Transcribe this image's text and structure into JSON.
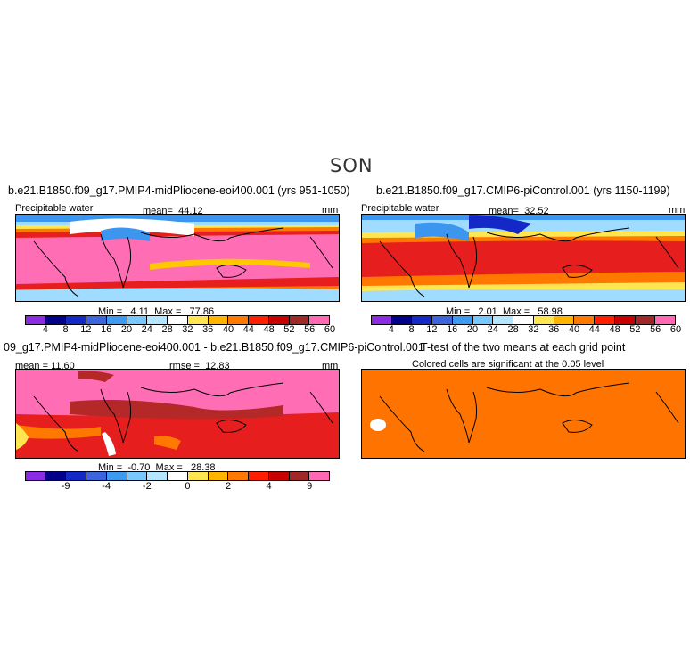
{
  "season": "SON",
  "panels": {
    "pliocene": {
      "run_title": "b.e21.B1850.f09_g17.PMIP4-midPliocene-eoi400.001 (yrs 951-1050)",
      "variable": "Precipitable water",
      "stat_label": "mean=",
      "stat_value": "44.12",
      "units": "mm",
      "min_label": "Min =",
      "min_value": "4.11",
      "max_label": "Max =",
      "max_value": "77.86"
    },
    "picontrol": {
      "run_title": "b.e21.B1850.f09_g17.CMIP6-piControl.001 (yrs 1150-1199)",
      "variable": "Precipitable water",
      "stat_label": "mean=",
      "stat_value": "32.52",
      "units": "mm",
      "min_label": "Min =",
      "min_value": "2.01",
      "max_label": "Max =",
      "max_value": "58.98"
    },
    "difference": {
      "run_title": "09_g17.PMIP4-midPliocene-eoi400.001 - b.e21.B1850.f09_g17.CMIP6-piControl.001",
      "stat_label": "mean =",
      "stat_value": "11.60",
      "rmse_label": "rmse =",
      "rmse_value": "12.83",
      "units": "mm",
      "min_label": "Min =",
      "min_value": "-0.70",
      "max_label": "Max =",
      "max_value": "28.38"
    },
    "ttest": {
      "run_title": "T-test of the two means at each grid point",
      "subtitle": "Colored cells are significant at the 0.05 level"
    }
  },
  "colorbars": {
    "absolute": {
      "colors": [
        "#8b2be2",
        "#00008b",
        "#1428c8",
        "#3c64dc",
        "#3c9bf0",
        "#78c8ff",
        "#b4e6ff",
        "#ffffff",
        "#ffe650",
        "#ffb400",
        "#ff7800",
        "#ff1e00",
        "#c80000",
        "#a02828",
        "#ff69b4"
      ],
      "labels": [
        "4",
        "8",
        "12",
        "16",
        "20",
        "24",
        "28",
        "32",
        "36",
        "40",
        "44",
        "48",
        "52",
        "56",
        "60"
      ]
    },
    "difference": {
      "colors": [
        "#8b2be2",
        "#00008b",
        "#1428c8",
        "#3c64dc",
        "#3c9bf0",
        "#78c8ff",
        "#b4e6ff",
        "#ffffff",
        "#ffe650",
        "#ffb400",
        "#ff7800",
        "#ff1e00",
        "#c80000",
        "#a02828",
        "#ff69b4"
      ],
      "labels": [
        "-9",
        "-4",
        "-2",
        "0",
        "2",
        "4",
        "9"
      ]
    }
  },
  "map_colors": {
    "pink": "#ff6eb4",
    "darkred": "#b42828",
    "red": "#e61e1e",
    "orange": "#ff7800",
    "yellow": "#ffc800",
    "white": "#ffffff",
    "lightblue": "#a0dcff",
    "blue": "#3c96f0",
    "darkblue": "#1428c8",
    "ttest_fill": "#ff7300"
  }
}
